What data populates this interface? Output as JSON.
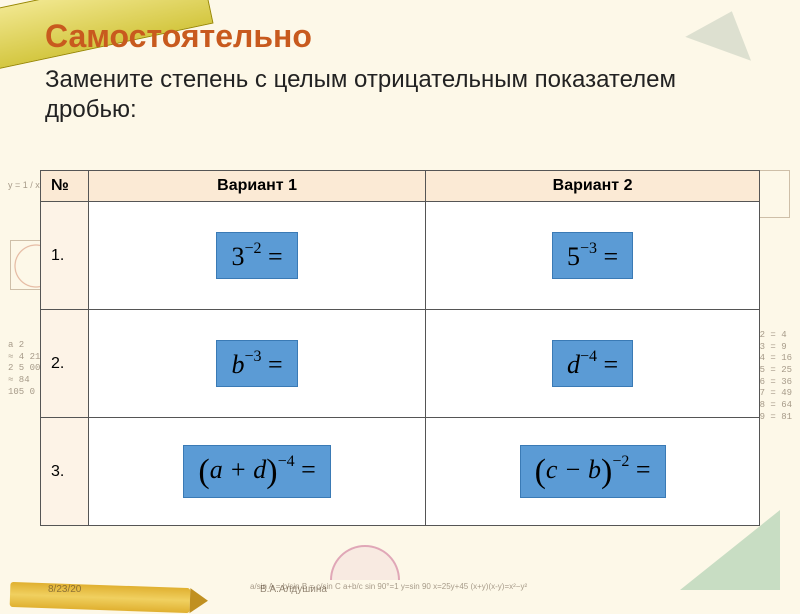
{
  "title": "Самостоятельно",
  "task_text": "Замените степень с целым отрицательным показателем дробью:",
  "headers": {
    "num": "№",
    "v1": "Вариант 1",
    "v2": "Вариант 2"
  },
  "rows": [
    {
      "n": "1.",
      "v1": {
        "base": "3",
        "italic": false,
        "paren": false,
        "exp": "−2"
      },
      "v2": {
        "base": "5",
        "italic": false,
        "paren": false,
        "exp": "−3"
      }
    },
    {
      "n": "2.",
      "v1": {
        "base": "b",
        "italic": true,
        "paren": false,
        "exp": "−3"
      },
      "v2": {
        "base": "d",
        "italic": true,
        "paren": false,
        "exp": "−4"
      }
    },
    {
      "n": "3.",
      "v1": {
        "base": "a + d",
        "italic": true,
        "paren": true,
        "exp": "−4"
      },
      "v2": {
        "base": "c − b",
        "italic": true,
        "paren": true,
        "exp": "−2"
      }
    }
  ],
  "colors": {
    "title": "#c85a1e",
    "formula_box_bg": "#5b9bd5",
    "header_bg": "#fbead5",
    "page_bg": "#fdf8e8"
  },
  "footer": {
    "date": "8/23/20",
    "author": "В.А.Алдушина"
  },
  "bg_text": {
    "left1": "y = 1 / x",
    "left2": "a 2\n≈ 4 21\n2 5 00\n≈ 84\n105 0 00",
    "right1": "2 x 2 = 4\n3 x 3 = 9\n4 x 4 = 16\n5 x 5 = 25\n6 x 6 = 36\n7 x 7 = 49\n8 x 8 = 64\n9 x 9 = 81",
    "bottom": "a/sin A = b/sin B = c/sin C    a+b/c    sin 90°=1    y=sin 90  x=25y+45  (x+y)(x-y)=x²−y²"
  }
}
